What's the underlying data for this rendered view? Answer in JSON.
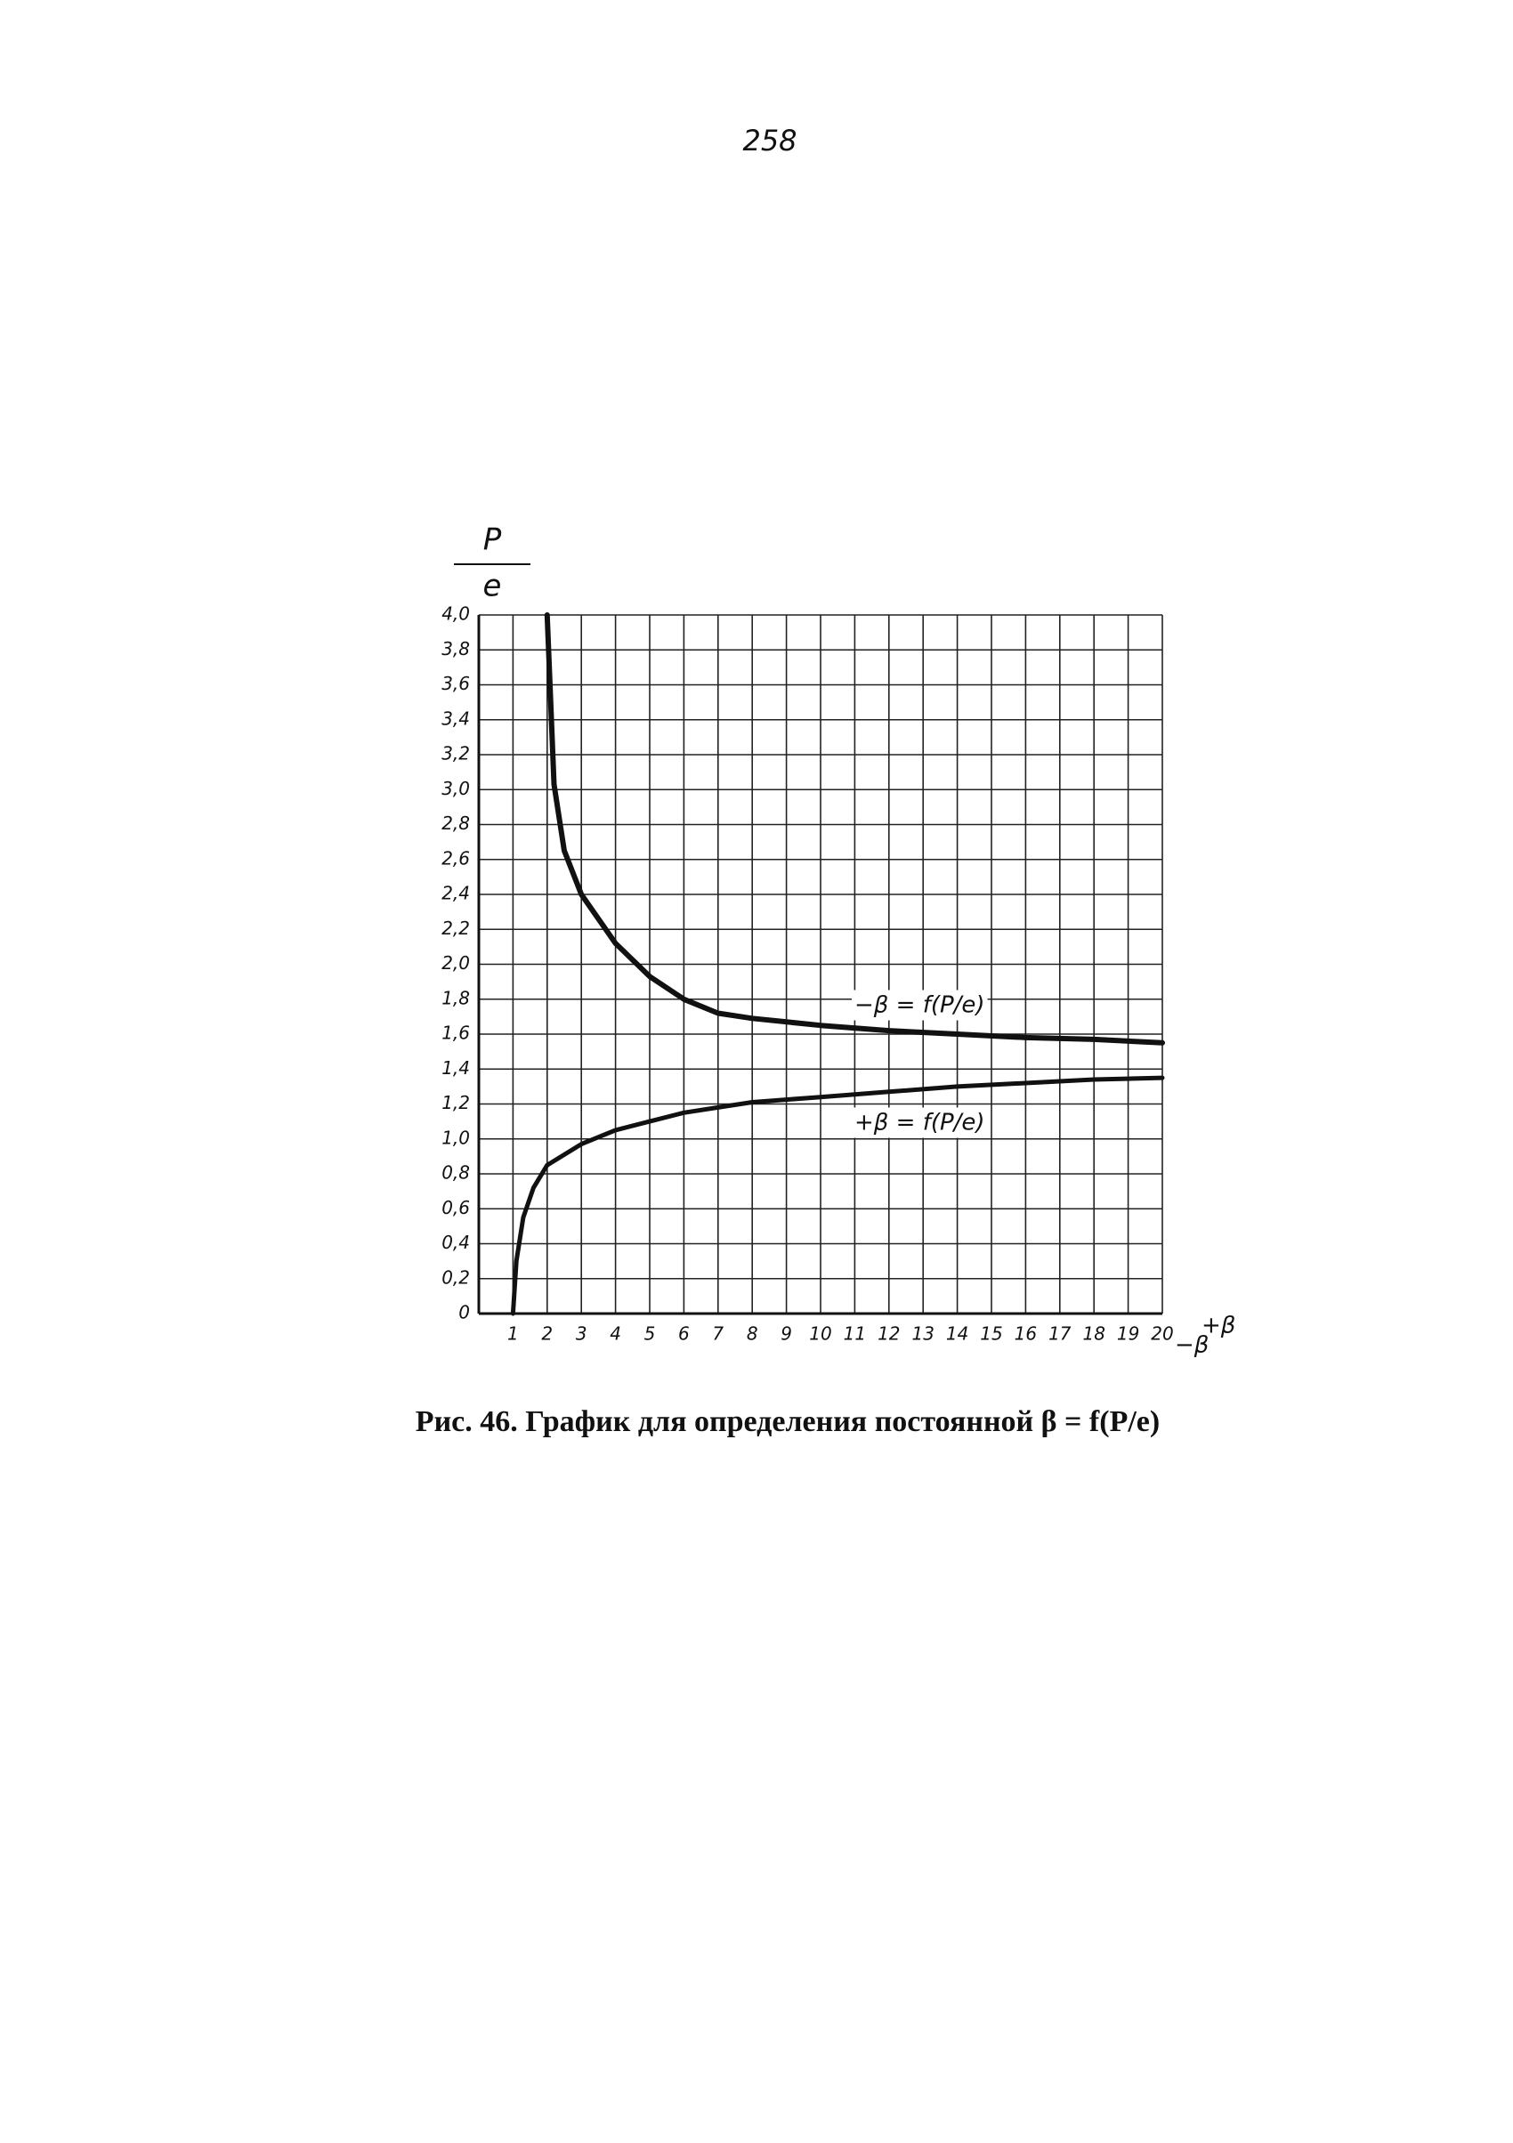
{
  "page_number": "258",
  "chart_data": {
    "type": "line",
    "title": "Рис. 46. График для определения постоянной β = f(P/e)",
    "ylabel": [
      "P",
      "e"
    ],
    "xlabel": [
      "+β",
      "−β"
    ],
    "xlim": [
      0,
      20
    ],
    "xticks": [
      1,
      2,
      3,
      4,
      5,
      6,
      7,
      8,
      9,
      10,
      11,
      12,
      13,
      14,
      15,
      16,
      17,
      18,
      19,
      20
    ],
    "ylim": [
      0,
      4
    ],
    "yticks": [
      0,
      {
        "value": 0.2,
        "label": "0,2"
      },
      {
        "value": 0.4,
        "label": "0,4"
      },
      {
        "value": 0.6,
        "label": "0,6"
      },
      {
        "value": 0.8,
        "label": "0,8"
      },
      {
        "value": 1.0,
        "label": "1,0"
      },
      {
        "value": 1.2,
        "label": "1,2"
      },
      {
        "value": 1.4,
        "label": "1,4"
      },
      {
        "value": 1.6,
        "label": "1,6"
      },
      {
        "value": 1.8,
        "label": "1,8"
      },
      {
        "value": 2.0,
        "label": "2,0"
      },
      {
        "value": 2.2,
        "label": "2,2"
      },
      {
        "value": 2.4,
        "label": "2,4"
      },
      {
        "value": 2.6,
        "label": "2,6"
      },
      {
        "value": 2.8,
        "label": "2,8"
      },
      {
        "value": 3.0,
        "label": "3,0"
      },
      {
        "value": 3.2,
        "label": "3,2"
      },
      {
        "value": 3.4,
        "label": "3,4"
      },
      {
        "value": 3.6,
        "label": "3,6"
      },
      {
        "value": 3.8,
        "label": "3,8"
      },
      {
        "value": 4.0,
        "label": "4,0"
      }
    ],
    "grid": true,
    "series": [
      {
        "name": "−β = f(P/e)",
        "color": "#111111",
        "x": [
          2,
          2.2,
          2.5,
          3,
          4,
          5,
          6,
          7,
          8,
          10,
          12,
          14,
          16,
          18,
          20
        ],
        "values": [
          4.0,
          3.03,
          2.65,
          2.4,
          2.12,
          1.93,
          1.8,
          1.72,
          1.69,
          1.65,
          1.62,
          1.6,
          1.58,
          1.57,
          1.55
        ]
      },
      {
        "name": "+β = f(P/e)",
        "color": "#111111",
        "x": [
          1,
          1.1,
          1.3,
          1.6,
          2,
          3,
          4,
          5,
          6,
          7,
          8,
          10,
          12,
          14,
          16,
          18,
          20
        ],
        "values": [
          0,
          0.3,
          0.55,
          0.72,
          0.85,
          0.97,
          1.05,
          1.1,
          1.15,
          1.18,
          1.21,
          1.24,
          1.27,
          1.3,
          1.32,
          1.34,
          1.35
        ]
      }
    ]
  }
}
